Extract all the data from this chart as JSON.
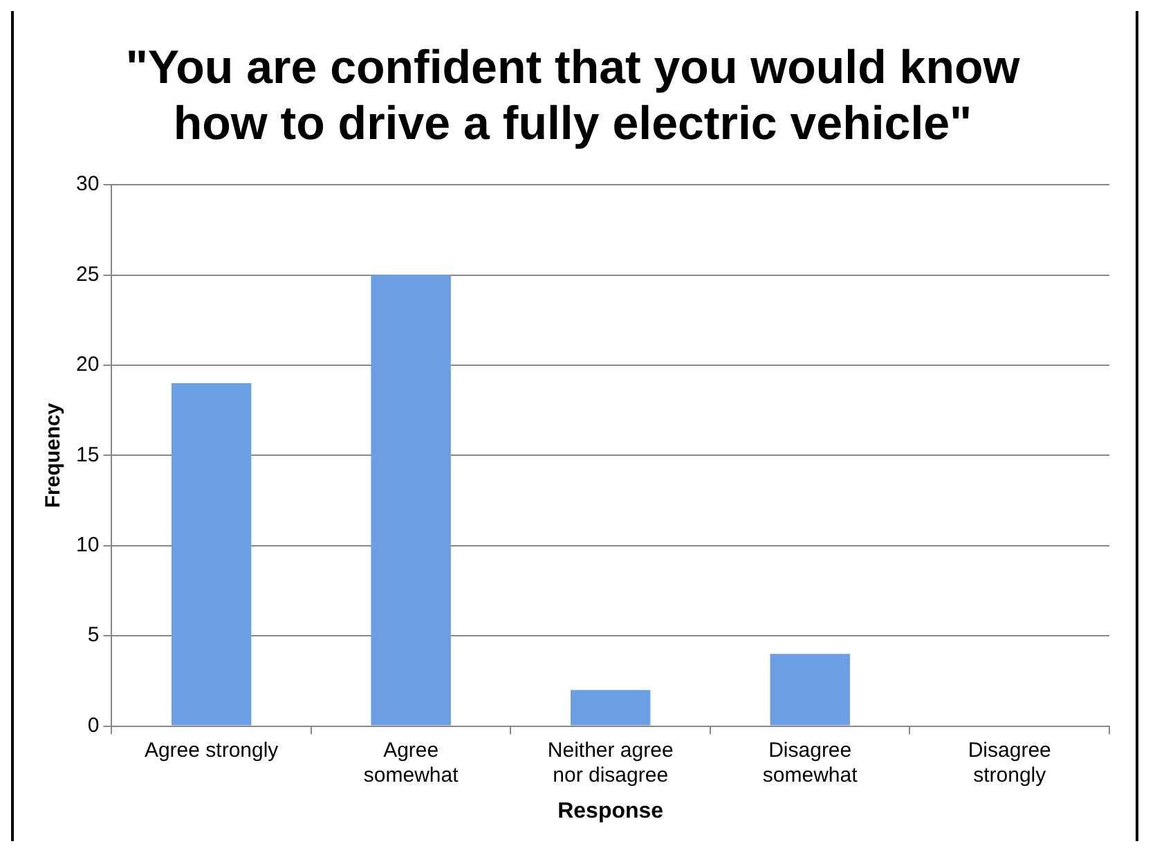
{
  "chart_data": {
    "type": "bar",
    "title": "\"You are confident that you would know how to drive a fully electric vehicle\"",
    "xlabel": "Response",
    "ylabel": "Frequency",
    "categories": [
      "Agree strongly",
      "Agree somewhat",
      "Neither agree nor disagree",
      "Disagree somewhat",
      "Disagree strongly"
    ],
    "values": [
      19,
      25,
      2,
      4,
      0
    ],
    "color": "#6a9fe3",
    "ylim": [
      0,
      30
    ],
    "yticks": [
      0,
      5,
      10,
      15,
      20,
      25,
      30
    ],
    "grid": "y",
    "legend": false
  }
}
